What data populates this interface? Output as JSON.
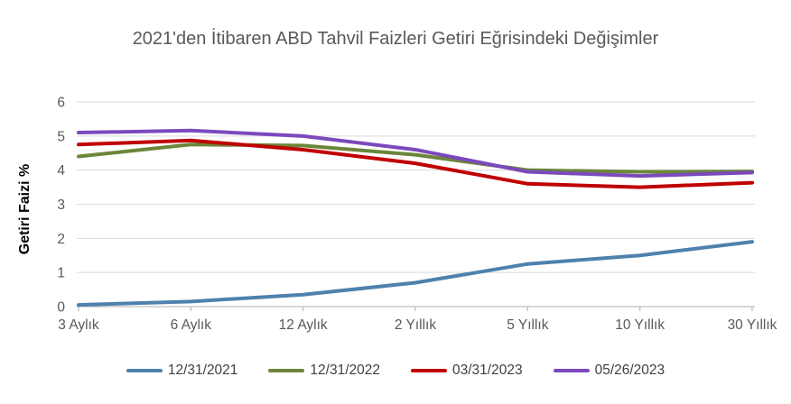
{
  "title": "2021'den İtibaren ABD Tahvil Faizleri Getiri Eğrisindeki Değişimler",
  "chart_data": {
    "type": "line",
    "title": "2021'den İtibaren ABD Tahvil Faizleri Getiri Eğrisindeki Değişimler",
    "categories": [
      "3 Aylık",
      "6 Aylık",
      "12 Aylık",
      "2 Yıllık",
      "5 Yıllık",
      "10 Yıllık",
      "30 Yıllık"
    ],
    "series": [
      {
        "name": "12/31/2021",
        "color": "#4E81AD",
        "values": [
          0.05,
          0.15,
          0.35,
          0.7,
          1.25,
          1.5,
          1.9
        ]
      },
      {
        "name": "12/31/2022",
        "color": "#6B8639",
        "values": [
          4.4,
          4.75,
          4.72,
          4.45,
          4.0,
          3.95,
          3.96
        ]
      },
      {
        "name": "03/31/2023",
        "color": "#C00000",
        "values": [
          4.75,
          4.87,
          4.6,
          4.2,
          3.6,
          3.5,
          3.63
        ]
      },
      {
        "name": "05/26/2023",
        "color": "#7B49BD",
        "values": [
          5.1,
          5.16,
          5.0,
          4.6,
          3.95,
          3.83,
          3.93
        ]
      }
    ],
    "xlabel": "",
    "ylabel": "Getiri Faizi %",
    "ylim": [
      0,
      6
    ],
    "yticks": [
      0,
      1,
      2,
      3,
      4,
      5,
      6
    ],
    "grid": true,
    "legend_position": "bottom"
  },
  "colors": {
    "background": "#FFFFFF",
    "title_text": "#595959",
    "tick_text": "#595959",
    "legend_text": "#404040",
    "gridline": "#D9D9D9",
    "axis_line": "#BFBFBF"
  }
}
